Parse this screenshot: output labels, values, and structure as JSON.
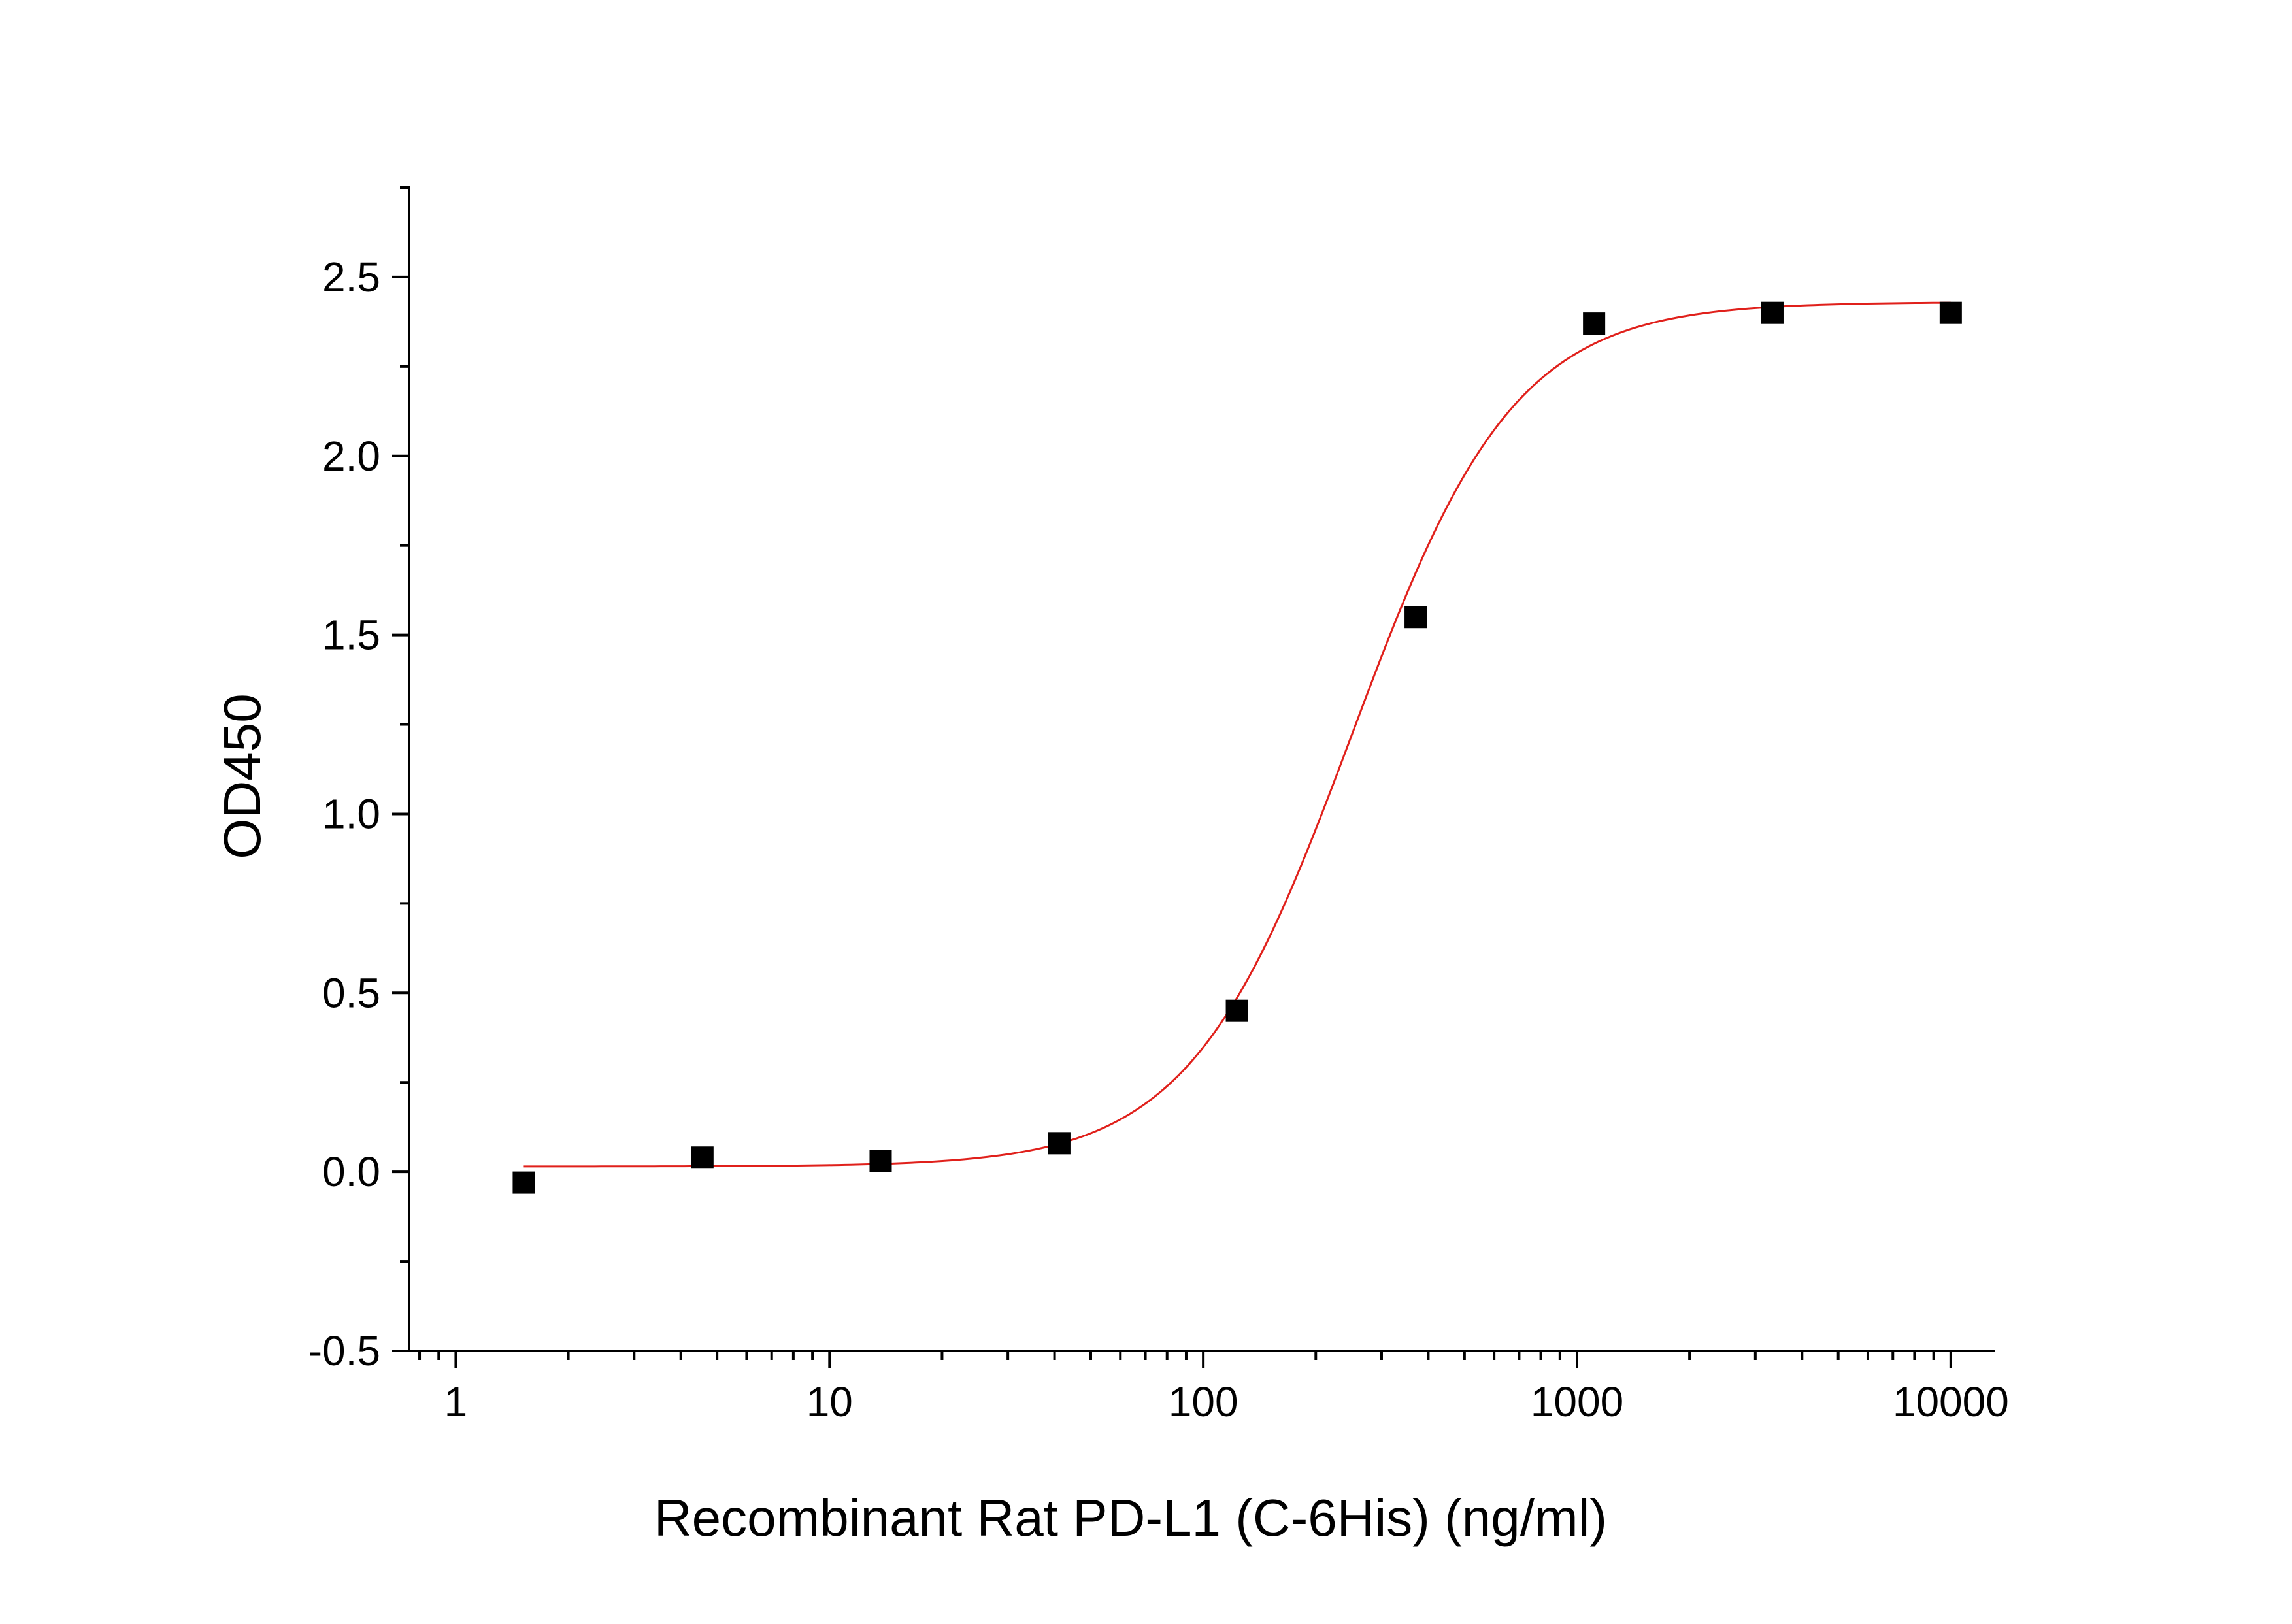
{
  "chart_data": {
    "type": "scatter",
    "xlabel": "Recombinant Rat PD-L1 (C-6His) (ng/ml)",
    "ylabel": "OD450",
    "xscale": "log",
    "xlim": [
      0.75,
      13000
    ],
    "ylim": [
      -0.5,
      2.75
    ],
    "x_ticks": [
      {
        "value": 1,
        "label": "1"
      },
      {
        "value": 10,
        "label": "10"
      },
      {
        "value": 100,
        "label": "100"
      },
      {
        "value": 1000,
        "label": "1000"
      },
      {
        "value": 10000,
        "label": "10000"
      }
    ],
    "y_ticks": [
      {
        "value": -0.5,
        "label": "-0.5"
      },
      {
        "value": 0.0,
        "label": "0.0"
      },
      {
        "value": 0.5,
        "label": "0.5"
      },
      {
        "value": 1.0,
        "label": "1.0"
      },
      {
        "value": 1.5,
        "label": "1.5"
      },
      {
        "value": 2.0,
        "label": "2.0"
      },
      {
        "value": 2.5,
        "label": "2.5"
      }
    ],
    "grid": false,
    "legend": "none",
    "series": [
      {
        "kind": "points",
        "marker": "square",
        "color": "#000000",
        "x": [
          1.52,
          4.57,
          13.7,
          41.2,
          123,
          370,
          1111,
          3333,
          10000
        ],
        "y": [
          -0.03,
          0.04,
          0.03,
          0.08,
          0.45,
          1.55,
          2.37,
          2.4,
          2.4
        ]
      },
      {
        "kind": "fit",
        "model": "four-parameter logistic",
        "color": "#e0201b",
        "params": {
          "bottom": 0.015,
          "top": 2.43,
          "ec50": 250,
          "hill": 2.0
        },
        "x_range": [
          1.52,
          10000
        ]
      }
    ]
  }
}
